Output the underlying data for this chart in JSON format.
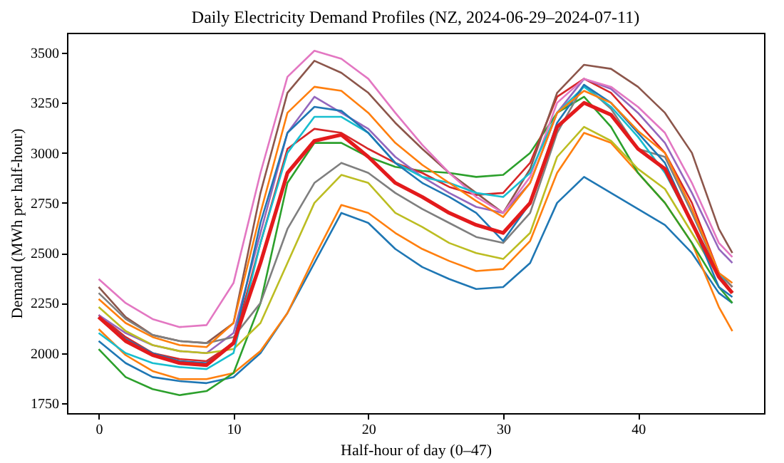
{
  "chart_data": {
    "type": "line",
    "title": "Daily Electricity Demand Profiles (NZ, 2024-06-29–2024-07-11)",
    "xlabel": "Half-hour of day (0–47)",
    "ylabel": "Demand (MWh per half-hour)",
    "x": [
      0,
      2,
      4,
      6,
      8,
      10,
      12,
      14,
      16,
      18,
      20,
      22,
      24,
      26,
      28,
      30,
      32,
      34,
      36,
      38,
      40,
      42,
      44,
      46,
      47
    ],
    "xlim": [
      -2.35,
      49.35
    ],
    "xticks": [
      0,
      10,
      20,
      30,
      40
    ],
    "ylim": [
      1700,
      3600
    ],
    "yticks": [
      1750,
      2000,
      2250,
      2500,
      2750,
      3000,
      3250,
      3500
    ],
    "grid": false,
    "marker": "none",
    "line_style": "solid",
    "series": [
      {
        "color": "#1f77b4",
        "values": [
          2060,
          1950,
          1880,
          1860,
          1850,
          1880,
          2000,
          2200,
          2450,
          2700,
          2650,
          2520,
          2430,
          2370,
          2320,
          2330,
          2450,
          2750,
          2880,
          2800,
          2720,
          2640,
          2500,
          2300,
          2250
        ]
      },
      {
        "color": "#ff7f0e",
        "values": [
          2120,
          1990,
          1910,
          1870,
          1870,
          1900,
          2010,
          2200,
          2480,
          2740,
          2700,
          2600,
          2520,
          2460,
          2410,
          2420,
          2560,
          2900,
          3100,
          3050,
          2900,
          2750,
          2550,
          2230,
          2110
        ]
      },
      {
        "color": "#2ca02c",
        "values": [
          2020,
          1880,
          1820,
          1790,
          1810,
          1900,
          2250,
          2850,
          3050,
          3050,
          2980,
          2930,
          2910,
          2900,
          2880,
          2890,
          3000,
          3200,
          3280,
          3130,
          2900,
          2750,
          2550,
          2330,
          2250
        ]
      },
      {
        "color": "#d62728",
        "values": [
          2190,
          2080,
          2000,
          1970,
          1960,
          2050,
          2550,
          3020,
          3120,
          3100,
          3020,
          2950,
          2900,
          2830,
          2790,
          2800,
          2950,
          3280,
          3370,
          3300,
          3150,
          3000,
          2750,
          2400,
          2330
        ]
      },
      {
        "color": "#9467bd",
        "values": [
          2190,
          2100,
          2040,
          2010,
          2000,
          2100,
          2600,
          3100,
          3280,
          3200,
          3120,
          2980,
          2880,
          2800,
          2730,
          2700,
          2850,
          3200,
          3370,
          3320,
          3200,
          3050,
          2800,
          2520,
          2450
        ]
      },
      {
        "color": "#8c564b",
        "values": [
          2330,
          2180,
          2090,
          2060,
          2050,
          2150,
          2800,
          3300,
          3460,
          3400,
          3300,
          3150,
          3020,
          2900,
          2800,
          2700,
          2920,
          3300,
          3440,
          3420,
          3330,
          3200,
          3000,
          2620,
          2500
        ]
      },
      {
        "color": "#e377c2",
        "values": [
          2370,
          2250,
          2170,
          2130,
          2140,
          2350,
          2900,
          3380,
          3510,
          3470,
          3370,
          3200,
          3040,
          2900,
          2780,
          2700,
          2880,
          3250,
          3370,
          3330,
          3230,
          3100,
          2850,
          2550,
          2480
        ]
      },
      {
        "color": "#7f7f7f",
        "values": [
          2300,
          2170,
          2090,
          2060,
          2050,
          2080,
          2250,
          2620,
          2850,
          2950,
          2900,
          2800,
          2720,
          2650,
          2580,
          2550,
          2700,
          3100,
          3340,
          3220,
          3020,
          2980,
          2700,
          2400,
          2330
        ]
      },
      {
        "color": "#bcbd22",
        "values": [
          2230,
          2110,
          2040,
          2010,
          2000,
          2020,
          2150,
          2450,
          2750,
          2890,
          2850,
          2700,
          2630,
          2550,
          2500,
          2470,
          2600,
          2980,
          3130,
          3060,
          2920,
          2820,
          2600,
          2380,
          2300
        ]
      },
      {
        "color": "#17becf",
        "values": [
          2100,
          2000,
          1950,
          1930,
          1920,
          2000,
          2550,
          3000,
          3180,
          3180,
          3100,
          2950,
          2880,
          2850,
          2800,
          2780,
          2900,
          3200,
          3330,
          3230,
          3080,
          2900,
          2650,
          2400,
          2300
        ]
      },
      {
        "color": "#1f77b4",
        "values": [
          2180,
          2070,
          2000,
          1960,
          1950,
          2050,
          2650,
          3100,
          3230,
          3210,
          3100,
          2950,
          2850,
          2780,
          2700,
          2560,
          2750,
          3150,
          3340,
          3250,
          3100,
          2950,
          2650,
          2330,
          2280
        ]
      },
      {
        "color": "#ff7f0e",
        "values": [
          2270,
          2150,
          2080,
          2040,
          2030,
          2150,
          2700,
          3200,
          3330,
          3310,
          3200,
          3050,
          2940,
          2850,
          2760,
          2680,
          2850,
          3200,
          3310,
          3250,
          3110,
          3000,
          2720,
          2400,
          2350
        ]
      },
      {
        "color": "#e31a1c",
        "values": [
          2180,
          2060,
          1990,
          1950,
          1940,
          2050,
          2450,
          2900,
          3060,
          3090,
          2980,
          2850,
          2780,
          2700,
          2640,
          2600,
          2750,
          3130,
          3250,
          3190,
          3020,
          2920,
          2650,
          2380,
          2300
        ]
      }
    ]
  }
}
